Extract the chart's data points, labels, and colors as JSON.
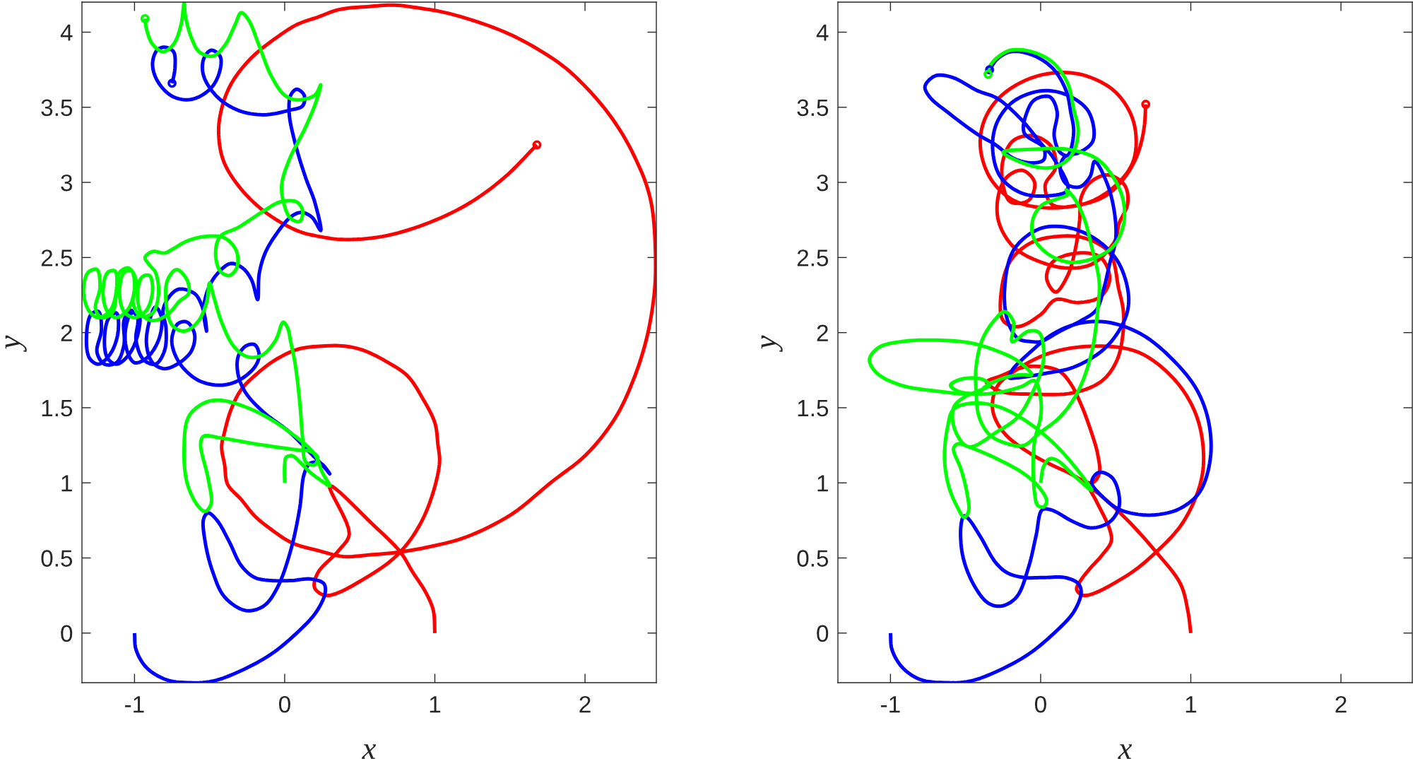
{
  "chart_data": [
    {
      "type": "line",
      "xlabel": "x",
      "ylabel": "y",
      "xlim": [
        -1.35,
        2.475
      ],
      "ylim": [
        -0.33,
        4.2
      ],
      "xticks": [
        -1,
        0,
        1,
        2
      ],
      "yticks": [
        0,
        0.5,
        1,
        1.5,
        2,
        2.5,
        3,
        3.5,
        4
      ],
      "series": [
        {
          "color": "#ff0000",
          "x": [
            1,
            0.99,
            0.94,
            0.85,
            0.77,
            0.59,
            0.3,
            0.43,
            0.36,
            0.22,
            0.2,
            0.28,
            0.56,
            0.77,
            0.93,
            1.03,
            1.02,
            1,
            0.92,
            0.82,
            0.69,
            0.53,
            0.4,
            0.25,
            0.09,
            -0.06,
            -0.18,
            -0.29,
            -0.36,
            -0.4,
            -0.42,
            -0.4,
            -0.38,
            -0.29,
            -0.2,
            -0.09,
            0.05,
            0.22,
            0.39,
            0.56,
            0.77,
            0.99,
            1.21,
            1.51,
            1.77,
            2.01,
            2.2,
            2.32,
            2.41,
            2.46,
            2.47,
            2.45,
            2.41,
            2.34,
            2.25,
            2.14,
            2.01,
            1.86,
            1.68,
            1.49,
            1.28,
            1.07,
            0.9,
            0.73,
            0.55,
            0.36,
            0.22,
            0.08,
            -0.06,
            -0.2,
            -0.3,
            -0.37,
            -0.42,
            -0.44,
            -0.41,
            -0.31,
            -0.14,
            0.08,
            0.23,
            0.39,
            0.65,
            0.93,
            1.21,
            1.46,
            1.68
          ],
          "values": [
            0,
            0.15,
            0.27,
            0.41,
            0.54,
            0.72,
            0.98,
            0.66,
            0.55,
            0.4,
            0.3,
            0.25,
            0.38,
            0.54,
            0.78,
            1.12,
            1.26,
            1.4,
            1.56,
            1.71,
            1.8,
            1.88,
            1.91,
            1.91,
            1.89,
            1.82,
            1.73,
            1.62,
            1.48,
            1.34,
            1.24,
            1.12,
            0.99,
            0.89,
            0.78,
            0.69,
            0.6,
            0.55,
            0.51,
            0.52,
            0.54,
            0.58,
            0.64,
            0.79,
            1,
            1.19,
            1.43,
            1.68,
            1.96,
            2.25,
            2.47,
            2.81,
            2.98,
            3.15,
            3.32,
            3.48,
            3.63,
            3.77,
            3.89,
            3.99,
            4.07,
            4.13,
            4.16,
            4.18,
            4.17,
            4.15,
            4.1,
            4.05,
            3.96,
            3.85,
            3.74,
            3.63,
            3.49,
            3.34,
            3.15,
            2.98,
            2.81,
            2.68,
            2.64,
            2.62,
            2.64,
            2.72,
            2.85,
            3.03,
            3.25
          ]
        },
        {
          "color": "#0000ff",
          "x": [
            -1,
            -0.99,
            -0.92,
            -0.79,
            -0.65,
            -0.48,
            -0.29,
            -0.09,
            0.08,
            0.21,
            0.27,
            0.26,
            0.17,
            0.05,
            -0.09,
            -0.2,
            -0.29,
            -0.37,
            -0.45,
            -0.51,
            -0.54,
            -0.53,
            -0.48,
            -0.4,
            -0.26,
            -0.14,
            -0.05,
            0.04,
            0.1,
            0.13,
            0.17,
            0.24,
            0.3,
            0.25,
            0.17,
            0.03,
            -0.14,
            -0.26,
            -0.31,
            -0.31,
            -0.26,
            -0.2,
            -0.17,
            -0.2,
            -0.31,
            -0.43,
            -0.57,
            -0.68,
            -0.74,
            -0.75,
            -0.71,
            -0.65,
            -0.6,
            -0.62,
            -0.7,
            -0.8,
            -0.88,
            -0.92,
            -0.9,
            -0.86,
            -0.82,
            -0.84,
            -0.92,
            -1,
            -1.05,
            -1.06,
            -1.02,
            -0.97,
            -0.98,
            -1.04,
            -1.12,
            -1.18,
            -1.2,
            -1.17,
            -1.12,
            -1.11,
            -1.16,
            -1.24,
            -1.3,
            -1.32,
            -1.29,
            -1.24,
            -1.22,
            -1.25,
            -1.2,
            -1.12,
            -1.07,
            -1.07,
            -1.03,
            -0.98,
            -0.99,
            -0.94,
            -0.86,
            -0.8,
            -0.79,
            -0.81,
            -0.76,
            -0.7,
            -0.6,
            -0.56,
            -0.53,
            -0.52,
            -0.54,
            -0.51,
            -0.45,
            -0.36,
            -0.28,
            -0.22,
            -0.18,
            -0.17,
            -0.13,
            -0.06,
            0.04,
            0.11,
            0.18,
            0.24,
            0.2,
            0.14,
            0.07,
            0.03,
            0.04,
            0.08,
            0.13,
            0.12,
            0.03,
            -0.14,
            -0.31,
            -0.45,
            -0.54,
            -0.54,
            -0.49,
            -0.43,
            -0.43,
            -0.48,
            -0.57,
            -0.66,
            -0.76,
            -0.85,
            -0.88,
            -0.85,
            -0.8,
            -0.74,
            -0.73,
            -0.74,
            -0.75
          ],
          "values": [
            0,
            -0.11,
            -0.23,
            -0.31,
            -0.33,
            -0.32,
            -0.25,
            -0.14,
            0,
            0.14,
            0.27,
            0.33,
            0.36,
            0.35,
            0.35,
            0.37,
            0.45,
            0.61,
            0.75,
            0.8,
            0.76,
            0.61,
            0.41,
            0.24,
            0.15,
            0.18,
            0.3,
            0.55,
            0.83,
            1.06,
            1.13,
            1.13,
            1.06,
            1.12,
            1.2,
            1.34,
            1.47,
            1.6,
            1.72,
            1.84,
            1.91,
            1.92,
            1.85,
            1.77,
            1.68,
            1.65,
            1.68,
            1.77,
            1.88,
            1.97,
            2.06,
            2.07,
            1.99,
            1.88,
            1.8,
            1.76,
            1.8,
            1.92,
            2.08,
            2.17,
            2.1,
            1.95,
            1.83,
            1.8,
            1.88,
            2.02,
            2.13,
            2.12,
            1.98,
            1.85,
            1.79,
            1.83,
            1.96,
            2.1,
            2.13,
            2,
            1.86,
            1.79,
            1.83,
            1.97,
            2.12,
            2.14,
            2.02,
            1.87,
            1.79,
            1.8,
            1.92,
            2.08,
            2.15,
            2.1,
            1.95,
            1.82,
            1.79,
            1.88,
            2.03,
            2.15,
            2.25,
            2.29,
            2.26,
            2.2,
            2.1,
            2.01,
            2.15,
            2.29,
            2.39,
            2.46,
            2.43,
            2.35,
            2.22,
            2.39,
            2.53,
            2.65,
            2.77,
            2.8,
            2.77,
            2.68,
            2.87,
            3.03,
            3.26,
            3.46,
            3.58,
            3.62,
            3.58,
            3.51,
            3.48,
            3.45,
            3.48,
            3.57,
            3.71,
            3.82,
            3.88,
            3.84,
            3.75,
            3.64,
            3.57,
            3.55,
            3.58,
            3.68,
            3.79,
            3.88,
            3.9,
            3.87,
            3.77,
            3.7,
            3.66
          ]
        },
        {
          "color": "#00ff00",
          "x": [
            0,
            0,
            0.01,
            0.05,
            0.1,
            0.17,
            0.25,
            0.3,
            0.25,
            0.2,
            0.03,
            -0.2,
            -0.43,
            -0.54,
            -0.64,
            -0.67,
            -0.65,
            -0.58,
            -0.53,
            -0.49,
            -0.51,
            -0.56,
            -0.54,
            -0.43,
            -0.2,
            0.08,
            0.17,
            0.22,
            0.2,
            0.14,
            0.12,
            0.1,
            0.07,
            0.04,
            0.02,
            -0.01,
            -0.06,
            -0.15,
            -0.25,
            -0.34,
            -0.42,
            -0.47,
            -0.5,
            -0.52,
            -0.58,
            -0.67,
            -0.75,
            -0.79,
            -0.78,
            -0.72,
            -0.65,
            -0.64,
            -0.7,
            -0.78,
            -0.88,
            -0.95,
            -0.98,
            -0.95,
            -0.9,
            -0.88,
            -0.92,
            -1,
            -1.07,
            -1.1,
            -1.07,
            -1.02,
            -1,
            -1.04,
            -1.12,
            -1.18,
            -1.21,
            -1.18,
            -1.13,
            -1.12,
            -1.16,
            -1.24,
            -1.3,
            -1.34,
            -1.31,
            -1.25,
            -1.23,
            -1.26,
            -1.22,
            -1.15,
            -1.12,
            -1.1,
            -1.04,
            -0.99,
            -1.01,
            -0.96,
            -0.88,
            -0.84,
            -0.86,
            -0.9,
            -0.93,
            -0.88,
            -0.8,
            -0.74,
            -0.65,
            -0.53,
            -0.4,
            -0.32,
            -0.32,
            -0.37,
            -0.43,
            -0.46,
            -0.43,
            -0.31,
            -0.14,
            -0.03,
            0.08,
            0.12,
            0.1,
            0.04,
            0,
            -0.02,
            0.03,
            0.14,
            0.21,
            0.24,
            0.2,
            0.08,
            0,
            -0.09,
            -0.17,
            -0.24,
            -0.29,
            -0.33,
            -0.4,
            -0.48,
            -0.57,
            -0.62,
            -0.66,
            -0.67,
            -0.69,
            -0.74,
            -0.81,
            -0.88,
            -0.92,
            -0.93
          ],
          "values": [
            1,
            1.12,
            1.17,
            1.18,
            1.14,
            1.07,
            1.01,
            0.98,
            1.07,
            1.19,
            1.34,
            1.48,
            1.55,
            1.53,
            1.44,
            1.23,
            1,
            0.85,
            0.81,
            0.86,
            1.03,
            1.26,
            1.31,
            1.3,
            1.26,
            1.22,
            1.21,
            1.17,
            1.12,
            1.14,
            1.29,
            1.54,
            1.79,
            1.94,
            2.03,
            2.07,
            1.95,
            1.85,
            1.84,
            1.91,
            2.07,
            2.23,
            2.33,
            2.2,
            2.07,
            2.01,
            2.05,
            2.2,
            2.35,
            2.42,
            2.35,
            2.26,
            2.21,
            2.12,
            2.08,
            2.12,
            2.25,
            2.37,
            2.38,
            2.28,
            2.15,
            2.1,
            2.14,
            2.27,
            2.4,
            2.41,
            2.3,
            2.16,
            2.1,
            2.14,
            2.27,
            2.4,
            2.41,
            2.29,
            2.15,
            2.1,
            2.14,
            2.27,
            2.4,
            2.42,
            2.3,
            2.16,
            2.1,
            2.13,
            2.26,
            2.4,
            2.43,
            2.35,
            2.2,
            2.11,
            2.13,
            2.26,
            2.4,
            2.45,
            2.5,
            2.54,
            2.53,
            2.56,
            2.61,
            2.64,
            2.63,
            2.54,
            2.43,
            2.38,
            2.41,
            2.53,
            2.64,
            2.7,
            2.81,
            2.87,
            2.87,
            2.81,
            2.74,
            2.76,
            2.84,
            2.98,
            3.15,
            3.37,
            3.54,
            3.65,
            3.58,
            3.55,
            3.58,
            3.71,
            3.91,
            4.08,
            4.13,
            4.05,
            3.91,
            3.84,
            3.87,
            3.96,
            4.1,
            4.19,
            4.05,
            3.92,
            3.87,
            3.92,
            4.02,
            4.09
          ]
        },
        {
          "type": "scatter",
          "color": "#ff0000",
          "marker": "circle",
          "x": [
            1.68
          ],
          "values": [
            3.25
          ]
        },
        {
          "type": "scatter",
          "color": "#0000ff",
          "marker": "circle",
          "x": [
            -0.75
          ],
          "values": [
            3.66
          ]
        },
        {
          "type": "scatter",
          "color": "#00ff00",
          "marker": "circle",
          "x": [
            -0.93
          ],
          "values": [
            4.09
          ]
        }
      ]
    },
    {
      "type": "line",
      "xlabel": "x",
      "ylabel": "y",
      "xlim": [
        -1.35,
        2.475
      ],
      "ylim": [
        -0.33,
        4.2
      ],
      "xticks": [
        -1,
        0,
        1,
        2
      ],
      "yticks": [
        0,
        0.5,
        1,
        1.5,
        2,
        2.5,
        3,
        3.5,
        4
      ],
      "series": [
        {
          "color": "#ff0000",
          "x": [
            1,
            0.98,
            0.93,
            0.76,
            0.57,
            0.37,
            0.33,
            0.37,
            0.46,
            0.47,
            0.41,
            0.32,
            0.26,
            0.24,
            0.29,
            0.57,
            0.77,
            0.95,
            1.07,
            1.08,
            1.02,
            0.88,
            0.65,
            0.37,
            0.08,
            -0.15,
            -0.29,
            -0.32,
            -0.25,
            -0.06,
            0.18,
            0.34,
            0.39,
            0.38,
            0.34,
            0.27,
            0.2,
            0.13,
            0.04,
            -0.11,
            -0.27,
            -0.36,
            -0.27,
            -0.04,
            0.22,
            0.41,
            0.51,
            0.55,
            0.55,
            0.52,
            0.46,
            0.29,
            0.11,
            -0.06,
            -0.2,
            -0.26,
            -0.25,
            -0.15,
            0,
            0.1,
            0.25,
            0.4,
            0.46,
            0.4,
            0.25,
            0.08,
            0.04,
            0.1,
            0.18,
            0.23,
            0.26,
            0.27,
            0.33,
            0.45,
            0.56,
            0.58,
            0.52,
            0.5,
            0.35,
            0.18,
            0,
            -0.18,
            -0.28,
            -0.28,
            -0.22,
            -0.12,
            -0.04,
            -0.08,
            -0.2,
            -0.25,
            -0.25,
            -0.18,
            -0.05,
            0.07,
            0.1,
            0.03,
            0.08,
            0.3,
            0.5,
            0.62,
            0.62,
            0.5,
            0.3,
            0.1,
            -0.1,
            -0.28,
            -0.38,
            -0.4,
            -0.33,
            -0.18,
            0.05,
            0.34,
            0.46,
            0.55,
            0.62,
            0.66,
            0.69,
            0.7
          ],
          "values": [
            0,
            0.15,
            0.33,
            0.55,
            0.76,
            0.94,
            0.96,
            0.88,
            0.69,
            0.61,
            0.52,
            0.42,
            0.34,
            0.29,
            0.25,
            0.38,
            0.54,
            0.74,
            1.02,
            1.26,
            1.49,
            1.7,
            1.87,
            1.91,
            1.87,
            1.76,
            1.64,
            1.49,
            1.34,
            1.19,
            1.07,
            1,
            1.06,
            1.19,
            1.33,
            1.52,
            1.66,
            1.74,
            1.77,
            1.77,
            1.71,
            1.67,
            1.61,
            1.59,
            1.6,
            1.68,
            1.82,
            2.01,
            2.15,
            2.29,
            2.53,
            2.63,
            2.64,
            2.6,
            2.48,
            2.29,
            2.08,
            2.04,
            2.12,
            2.22,
            2.2,
            2.24,
            2.36,
            2.5,
            2.53,
            2.47,
            2.36,
            2.27,
            2.38,
            2.55,
            2.75,
            2.9,
            3,
            3.05,
            2.98,
            2.86,
            2.72,
            2.62,
            2.46,
            2.43,
            2.47,
            2.57,
            2.74,
            2.92,
            3.04,
            3.08,
            3,
            2.88,
            2.87,
            2.98,
            3.15,
            3.28,
            3.31,
            3.24,
            3.1,
            2.98,
            2.85,
            2.86,
            2.98,
            3.15,
            3.4,
            3.6,
            3.71,
            3.73,
            3.68,
            3.56,
            3.4,
            3.22,
            3.02,
            2.88,
            2.83,
            2.87,
            2.93,
            3.02,
            3.13,
            3.23,
            3.37,
            3.52
          ]
        },
        {
          "color": "#0000ff",
          "x": [
            -1,
            -0.99,
            -0.92,
            -0.8,
            -0.64,
            -0.47,
            -0.28,
            -0.08,
            0.09,
            0.22,
            0.27,
            0.25,
            0.16,
            0.03,
            -0.11,
            -0.22,
            -0.3,
            -0.4,
            -0.48,
            -0.51,
            -0.53,
            -0.52,
            -0.45,
            -0.35,
            -0.26,
            -0.16,
            -0.08,
            -0.03,
            0.01,
            0.07,
            0.22,
            0.34,
            0.46,
            0.52,
            0.52,
            0.48,
            0.41,
            0.37,
            0.34,
            0.39,
            0.51,
            0.65,
            0.79,
            0.93,
            1.06,
            1.13,
            1.12,
            1.04,
            0.88,
            0.67,
            0.44,
            0.25,
            0.08,
            -0.08,
            -0.19,
            -0.21,
            -0.15,
            0.04,
            0.22,
            0.41,
            0.52,
            0.58,
            0.58,
            0.51,
            0.37,
            0.18,
            -0.01,
            -0.18,
            -0.24,
            -0.22,
            -0.15,
            -0.06,
            0,
            0.13,
            0.27,
            0.37,
            0.42,
            0.46,
            0.5,
            0.49,
            0.44,
            0.36,
            0.33,
            0.26,
            0.17,
            0.13,
            0.16,
            0.26,
            0.35,
            0.32,
            0.18,
            0.01,
            -0.18,
            -0.29,
            -0.32,
            -0.27,
            -0.13,
            0.04,
            0.18,
            0.08,
            0.01,
            -0.13,
            -0.29,
            -0.42,
            -0.59,
            -0.7,
            -0.77,
            -0.74,
            -0.61,
            -0.42,
            -0.3,
            -0.18,
            -0.06,
            0.02,
            0.02,
            -0.11,
            -0.09,
            -0.04,
            0.06,
            0.11,
            0.09,
            0.13,
            0.18,
            0.22,
            0.2,
            0.17,
            0.08,
            -0.06,
            -0.2,
            -0.29,
            -0.34
          ],
          "values": [
            0,
            -0.11,
            -0.23,
            -0.31,
            -0.33,
            -0.32,
            -0.25,
            -0.14,
            0,
            0.14,
            0.27,
            0.33,
            0.37,
            0.37,
            0.37,
            0.4,
            0.47,
            0.64,
            0.76,
            0.78,
            0.72,
            0.52,
            0.33,
            0.2,
            0.18,
            0.24,
            0.44,
            0.65,
            0.82,
            0.82,
            0.74,
            0.7,
            0.74,
            0.83,
            0.93,
            1.03,
            1.07,
            1.06,
            1,
            0.93,
            0.83,
            0.79,
            0.79,
            0.83,
            0.94,
            1.16,
            1.4,
            1.62,
            1.82,
            1.99,
            2.07,
            2.06,
            1.99,
            1.86,
            1.75,
            1.7,
            1.7,
            1.73,
            1.77,
            1.88,
            2.01,
            2.15,
            2.29,
            2.48,
            2.62,
            2.7,
            2.69,
            2.55,
            2.29,
            2.08,
            1.96,
            1.94,
            1.94,
            2.01,
            2.08,
            2.15,
            2.29,
            2.46,
            2.62,
            2.81,
            3,
            3.14,
            3.04,
            2.97,
            2.99,
            3.09,
            3.17,
            3.2,
            3.28,
            3.47,
            3.58,
            3.61,
            3.54,
            3.4,
            3.23,
            3.04,
            2.93,
            2.91,
            2.95,
            3.17,
            3.25,
            3.42,
            3.56,
            3.61,
            3.7,
            3.71,
            3.64,
            3.57,
            3.46,
            3.32,
            3.25,
            3.16,
            3.13,
            3.15,
            3.23,
            3.33,
            3.47,
            3.55,
            3.57,
            3.47,
            3.31,
            3.2,
            3.18,
            3.33,
            3.47,
            3.61,
            3.76,
            3.85,
            3.87,
            3.82,
            3.75
          ]
        },
        {
          "color": "#00ff00",
          "x": [
            0,
            0.02,
            0.06,
            0.11,
            0.22,
            0.34,
            0.25,
            0.08,
            -0.11,
            -0.29,
            -0.46,
            -0.58,
            -0.62,
            -0.64,
            -0.61,
            -0.55,
            -0.51,
            -0.48,
            -0.49,
            -0.53,
            -0.58,
            -0.55,
            -0.48,
            -0.29,
            -0.11,
            -0.01,
            0.04,
            0.02,
            -0.02,
            -0.04,
            -0.05,
            -0.04,
            0,
            0,
            -0.04,
            -0.13,
            -0.29,
            -0.46,
            -0.69,
            -0.93,
            -1.09,
            -1.14,
            -1.08,
            -0.93,
            -0.69,
            -0.46,
            -0.27,
            -0.15,
            -0.06,
            -0.13,
            -0.24,
            -0.37,
            -0.41,
            -0.55,
            -0.6,
            -0.53,
            -0.39,
            -0.34,
            -0.42,
            -0.51,
            -0.58,
            -0.57,
            -0.48,
            -0.29,
            -0.15,
            -0.06,
            0.01,
            0.02,
            -0.01,
            -0.08,
            -0.19,
            -0.18,
            -0.24,
            -0.31,
            -0.39,
            -0.43,
            -0.43,
            -0.41,
            -0.34,
            -0.22,
            -0.11,
            -0.01,
            0.13,
            0.25,
            0.34,
            0.38,
            0.39,
            0.34,
            0.29,
            0.22,
            0.17,
            0.18,
            0.11,
            0.01,
            -0.05,
            -0.05,
            0.04,
            0.18,
            0.34,
            0.48,
            0.55,
            0.55,
            0.48,
            0.37,
            0.18,
            -0.06,
            -0.25,
            -0.06,
            0.08,
            0.18,
            0.23,
            0.25,
            0.22,
            0.18,
            0.08,
            -0.06,
            -0.2,
            -0.29,
            -0.34,
            -0.35
          ],
          "values": [
            1,
            1.11,
            1.16,
            1.15,
            1.05,
            0.95,
            1.08,
            1.27,
            1.42,
            1.51,
            1.53,
            1.49,
            1.37,
            1.16,
            0.97,
            0.83,
            0.77,
            0.81,
            0.93,
            1.09,
            1.23,
            1.26,
            1.24,
            1.16,
            1.06,
            0.97,
            0.88,
            0.84,
            0.85,
            0.93,
            1.11,
            1.28,
            1.44,
            1.56,
            1.68,
            1.64,
            1.6,
            1.59,
            1.61,
            1.65,
            1.73,
            1.82,
            1.9,
            1.94,
            1.95,
            1.93,
            1.87,
            1.81,
            1.72,
            1.72,
            1.7,
            1.64,
            1.6,
            1.61,
            1.65,
            1.69,
            1.69,
            1.65,
            1.61,
            1.57,
            1.5,
            1.35,
            1.24,
            1.34,
            1.44,
            1.59,
            1.77,
            1.89,
            2,
            2.01,
            1.94,
            2.07,
            2.14,
            2.08,
            1.95,
            1.77,
            1.61,
            1.44,
            1.32,
            1.26,
            1.25,
            1.33,
            1.44,
            1.61,
            1.87,
            2.15,
            2.34,
            2.57,
            2.76,
            2.9,
            2.95,
            2.92,
            2.89,
            2.85,
            2.76,
            2.64,
            2.53,
            2.47,
            2.49,
            2.57,
            2.71,
            2.88,
            3.04,
            3.16,
            3.22,
            3.22,
            3.2,
            3.11,
            3.1,
            3.15,
            3.23,
            3.35,
            3.49,
            3.66,
            3.8,
            3.87,
            3.88,
            3.83,
            3.77,
            3.72
          ]
        },
        {
          "type": "scatter",
          "color": "#ff0000",
          "marker": "circle",
          "x": [
            0.7
          ],
          "values": [
            3.52
          ]
        },
        {
          "type": "scatter",
          "color": "#0000ff",
          "marker": "circle",
          "x": [
            -0.34
          ],
          "values": [
            3.75
          ]
        },
        {
          "type": "scatter",
          "color": "#00ff00",
          "marker": "circle",
          "x": [
            -0.35
          ],
          "values": [
            3.72
          ]
        }
      ]
    }
  ]
}
